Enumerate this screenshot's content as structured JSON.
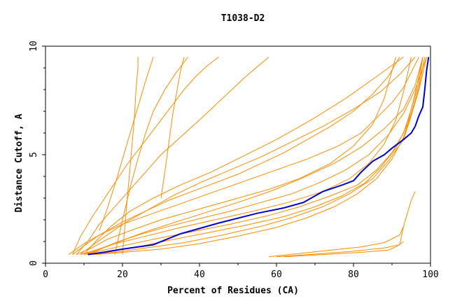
{
  "chart_data": {
    "type": "line",
    "title": "T1038-D2",
    "xlabel": "Percent of Residues (CA)",
    "ylabel": "Distance Cutoff, A",
    "xlim": [
      0,
      100
    ],
    "ylim": [
      0,
      10
    ],
    "x_ticks": [
      0,
      20,
      40,
      60,
      80,
      100
    ],
    "y_ticks": [
      0,
      5,
      10
    ],
    "grid": false,
    "legend": "none",
    "colors": {
      "highlight": "#0000cc",
      "others": "#ff8c00",
      "axes": "#000000"
    },
    "highlight_series": {
      "x": [
        11,
        15,
        20,
        28,
        35,
        45,
        55,
        62,
        67,
        72,
        77,
        80,
        82,
        85,
        88,
        90,
        93,
        95,
        96,
        97,
        98,
        98.5,
        99,
        99.5
      ],
      "y": [
        0.4,
        0.5,
        0.65,
        0.85,
        1.35,
        1.85,
        2.3,
        2.55,
        2.8,
        3.3,
        3.6,
        3.8,
        4.2,
        4.7,
        5.0,
        5.3,
        5.7,
        6.0,
        6.3,
        6.8,
        7.2,
        8.0,
        8.9,
        9.5
      ]
    },
    "other_series": [
      {
        "x": [
          6,
          10,
          14,
          20,
          28,
          36,
          44,
          52,
          60,
          68,
          76,
          82,
          86,
          90,
          93,
          95,
          97
        ],
        "y": [
          0.4,
          0.9,
          1.3,
          1.8,
          2.3,
          2.8,
          3.3,
          3.8,
          4.3,
          4.8,
          5.4,
          6.0,
          6.7,
          7.4,
          8.1,
          8.8,
          9.5
        ]
      },
      {
        "x": [
          7,
          9,
          12,
          15,
          18,
          21,
          24,
          27,
          30,
          33,
          36,
          39,
          42,
          45
        ],
        "y": [
          0.4,
          1.2,
          2.1,
          2.9,
          3.7,
          4.5,
          5.2,
          5.9,
          6.6,
          7.3,
          8.0,
          8.6,
          9.1,
          9.5
        ]
      },
      {
        "x": [
          8,
          11,
          14,
          18,
          22,
          26,
          30,
          35,
          40,
          46,
          52,
          58
        ],
        "y": [
          0.4,
          1.0,
          1.8,
          2.6,
          3.4,
          4.2,
          5.0,
          5.8,
          6.6,
          7.6,
          8.6,
          9.5
        ]
      },
      {
        "x": [
          8,
          12,
          16,
          22,
          30,
          40,
          50,
          58,
          66,
          74,
          80,
          85,
          88,
          91
        ],
        "y": [
          0.4,
          0.7,
          1.1,
          1.5,
          2.0,
          2.5,
          3.0,
          3.4,
          3.9,
          4.6,
          5.4,
          6.4,
          7.6,
          9.5
        ]
      },
      {
        "x": [
          9,
          13,
          18,
          25,
          34,
          44,
          54,
          63,
          72,
          79,
          84,
          88,
          91,
          93,
          95
        ],
        "y": [
          0.4,
          0.6,
          0.9,
          1.2,
          1.6,
          2.0,
          2.4,
          2.8,
          3.3,
          3.9,
          4.6,
          5.5,
          6.6,
          7.9,
          9.5
        ]
      },
      {
        "x": [
          10,
          14,
          20,
          28,
          38,
          48,
          58,
          66,
          74,
          81,
          86,
          90,
          93,
          95,
          97,
          98
        ],
        "y": [
          0.4,
          0.55,
          0.8,
          1.1,
          1.45,
          1.8,
          2.2,
          2.6,
          3.1,
          3.6,
          4.3,
          5.1,
          6.0,
          7.1,
          8.3,
          9.5
        ]
      },
      {
        "x": [
          11,
          16,
          24,
          32,
          42,
          52,
          62,
          70,
          77,
          83,
          87,
          91,
          94,
          96,
          98
        ],
        "y": [
          0.4,
          0.5,
          0.75,
          1.05,
          1.4,
          1.75,
          2.15,
          2.6,
          3.1,
          3.7,
          4.4,
          5.3,
          6.4,
          7.8,
          9.5
        ]
      },
      {
        "x": [
          12,
          18,
          26,
          36,
          46,
          56,
          64,
          72,
          79,
          85,
          89,
          93,
          95,
          97,
          99
        ],
        "y": [
          0.4,
          0.5,
          0.7,
          0.95,
          1.3,
          1.7,
          2.1,
          2.6,
          3.2,
          3.9,
          4.7,
          5.7,
          6.8,
          8.0,
          9.5
        ]
      },
      {
        "x": [
          7,
          10,
          14,
          20,
          26,
          32,
          38,
          44,
          50,
          56,
          62,
          68,
          74,
          80,
          85,
          89,
          92
        ],
        "y": [
          0.4,
          0.8,
          1.3,
          1.9,
          2.4,
          2.9,
          3.3,
          3.7,
          4.1,
          4.6,
          5.1,
          5.7,
          6.3,
          7.0,
          7.8,
          8.6,
          9.5
        ]
      },
      {
        "x": [
          9,
          12,
          16,
          21,
          27,
          33,
          40,
          48,
          56,
          64,
          72,
          80,
          87,
          92,
          96
        ],
        "y": [
          0.4,
          0.8,
          1.3,
          1.9,
          2.5,
          3.1,
          3.7,
          4.3,
          4.9,
          5.6,
          6.3,
          7.1,
          7.9,
          8.7,
          9.5
        ]
      },
      {
        "x": [
          10,
          14,
          19,
          25,
          32,
          40,
          48,
          56,
          64,
          71,
          78,
          84,
          89,
          93,
          96,
          99
        ],
        "y": [
          0.4,
          0.65,
          1.0,
          1.35,
          1.7,
          2.05,
          2.4,
          2.8,
          3.2,
          3.7,
          4.3,
          5.0,
          5.9,
          6.9,
          8.0,
          9.5
        ]
      },
      {
        "x": [
          13,
          20,
          30,
          40,
          50,
          60,
          68,
          75,
          81,
          86,
          90,
          93,
          95,
          97,
          98.5
        ],
        "y": [
          0.4,
          0.5,
          0.65,
          0.9,
          1.25,
          1.65,
          2.1,
          2.6,
          3.2,
          3.9,
          4.8,
          5.8,
          6.9,
          8.1,
          9.5
        ]
      },
      {
        "x": [
          20,
          21,
          22,
          23,
          23.5,
          24,
          24
        ],
        "y": [
          0.4,
          2.5,
          4.5,
          6.5,
          8.0,
          9.0,
          9.5
        ]
      },
      {
        "x": [
          18,
          20,
          22,
          24,
          26,
          28,
          31,
          34,
          37
        ],
        "y": [
          0.4,
          2.0,
          3.5,
          4.8,
          6.0,
          7.0,
          8.0,
          8.8,
          9.5
        ]
      },
      {
        "x": [
          10,
          13,
          17,
          22,
          28,
          35,
          43,
          51,
          60,
          69,
          78,
          86,
          93
        ],
        "y": [
          0.4,
          1.0,
          1.7,
          2.4,
          3.0,
          3.6,
          4.2,
          4.9,
          5.7,
          6.6,
          7.6,
          8.6,
          9.5
        ]
      },
      {
        "x": [
          11,
          15,
          20,
          26,
          33,
          41,
          50,
          59,
          67,
          75,
          82,
          88,
          93,
          96,
          98
        ],
        "y": [
          0.4,
          0.7,
          1.05,
          1.45,
          1.85,
          2.3,
          2.8,
          3.35,
          3.95,
          4.6,
          5.35,
          6.2,
          7.1,
          8.2,
          9.5
        ]
      },
      {
        "x": [
          58,
          66,
          74,
          82,
          88,
          92,
          93
        ],
        "y": [
          0.3,
          0.45,
          0.6,
          0.75,
          0.95,
          1.3,
          1.7
        ]
      },
      {
        "x": [
          60,
          70,
          80,
          88,
          92,
          93,
          95,
          96
        ],
        "y": [
          0.3,
          0.42,
          0.55,
          0.7,
          0.85,
          1.7,
          2.9,
          3.3
        ]
      },
      {
        "x": [
          62,
          72,
          82,
          89,
          91,
          93
        ],
        "y": [
          0.3,
          0.4,
          0.5,
          0.6,
          0.75,
          1.0
        ]
      },
      {
        "x": [
          30,
          31,
          32,
          33,
          34,
          35,
          36
        ],
        "y": [
          3.0,
          4.2,
          5.5,
          6.8,
          7.8,
          8.8,
          9.5
        ]
      },
      {
        "x": [
          14,
          16,
          18,
          20,
          22,
          24,
          26,
          28
        ],
        "y": [
          1.5,
          2.5,
          3.6,
          4.8,
          6.0,
          7.2,
          8.4,
          9.5
        ]
      }
    ]
  }
}
